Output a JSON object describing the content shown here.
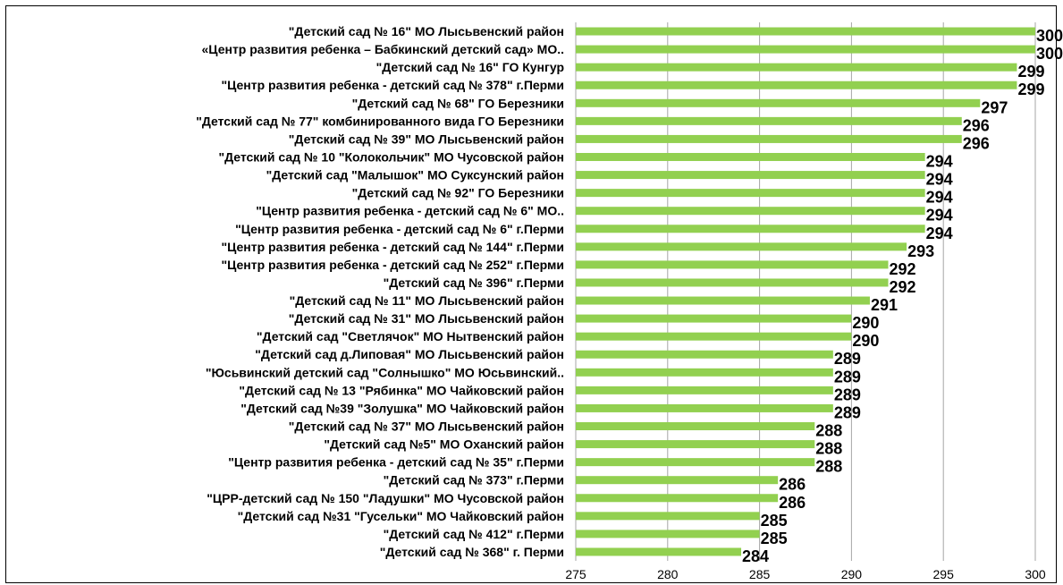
{
  "chart_data": {
    "type": "bar",
    "orientation": "horizontal",
    "title": "",
    "xlabel": "",
    "ylabel": "",
    "xlim": [
      275,
      300
    ],
    "x_ticks": [
      275,
      280,
      285,
      290,
      295,
      300
    ],
    "grid": "vertical",
    "bar_color": "#92d050",
    "categories": [
      "\"Детский сад № 16\" МО Лысьвенский район",
      "«Центр развития ребенка – Бабкинский детский сад» МО..",
      "\"Детский сад № 16\" ГО Кунгур",
      "\"Центр развития ребенка - детский сад № 378\" г.Перми",
      "\"Детский сад № 68\" ГО Березники",
      "\"Детский сад № 77\" комбинированного вида ГО Березники",
      "\"Детский сад № 39\" МО Лысьвенский район",
      "\"Детский сад № 10 \"Колокольчик\" МО Чусовской район",
      "\"Детский сад \"Малышок\" МО Суксунский район",
      "\"Детский сад № 92\" ГО Березники",
      "\"Центр развития ребенка - детский сад № 6\" МО..",
      "\"Центр развития ребенка - детский сад № 6\" г.Перми",
      "\"Центр развития ребенка - детский сад № 144\" г.Перми",
      "\"Центр развития ребенка - детский сад № 252\" г.Перми",
      "\"Детский сад № 396\" г.Перми",
      "\"Детский сад № 11\" МО Лысьвенский район",
      "\"Детский сад № 31\" МО Лысьвенский район",
      "\"Детский сад \"Светлячок\" МО Нытвенский район",
      "\"Детский сад д.Липовая\" МО Лысьвенский район",
      "\"Юсьвинский детский сад \"Солнышко\" МО Юсьвинский..",
      "\"Детский сад № 13 \"Рябинка\" МО Чайковский район",
      "\"Детский сад №39 \"Золушка\" МО Чайковский район",
      "\"Детский сад № 37\" МО Лысьвенский район",
      "\"Детский сад №5\" МО Оханский район",
      "\"Центр развития ребенка - детский сад № 35\" г.Перми",
      "\"Детский сад № 373\" г.Перми",
      "\"ЦРР-детский сад № 150 \"Ладушки\" МО Чусовской район",
      "\"Детский сад №31 \"Гусельки\" МО Чайковский район",
      "\"Детский сад № 412\" г.Перми",
      "\"Детский сад № 368\" г. Перми"
    ],
    "values": [
      300,
      300,
      299,
      299,
      297,
      296,
      296,
      294,
      294,
      294,
      294,
      294,
      293,
      292,
      292,
      291,
      290,
      290,
      289,
      289,
      289,
      289,
      288,
      288,
      288,
      286,
      286,
      285,
      285,
      284
    ]
  }
}
